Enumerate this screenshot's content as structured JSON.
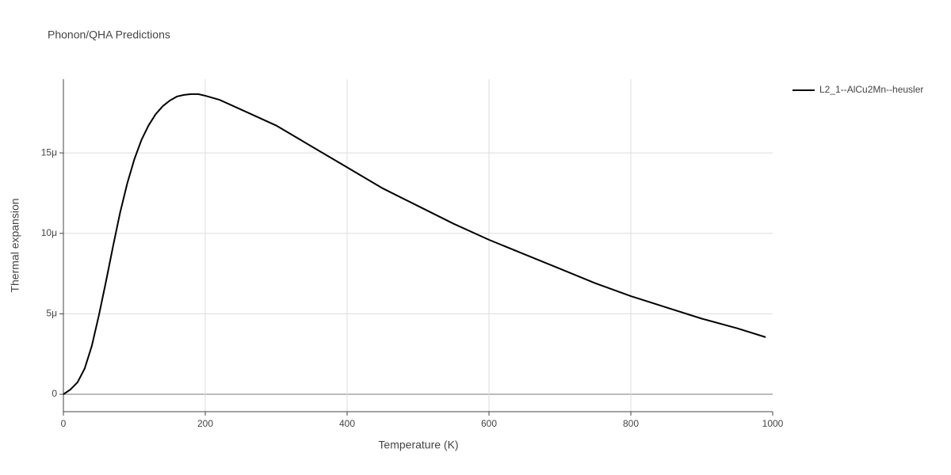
{
  "chart_data": {
    "type": "line",
    "title": "Phonon/QHA Predictions",
    "x_label": "Temperature (K)",
    "y_label": "Thermal expansion",
    "xlim": [
      0,
      1000
    ],
    "xticks": [
      0,
      200,
      400,
      600,
      800,
      1000
    ],
    "ylim": [
      -1.08e-06,
      1.958e-05
    ],
    "yticks": [
      0,
      {
        "value": 5e-06,
        "label": "5μ"
      },
      {
        "value": 1e-05,
        "label": "10μ"
      },
      {
        "value": 1.5e-05,
        "label": "15μ"
      }
    ],
    "grid": true,
    "legend": "top-right",
    "x": [
      0,
      10,
      20,
      30,
      40,
      50,
      60,
      70,
      80,
      90,
      100,
      110,
      120,
      130,
      140,
      150,
      160,
      170,
      180,
      190,
      200,
      220,
      250,
      300,
      350,
      400,
      450,
      500,
      550,
      600,
      650,
      700,
      750,
      800,
      850,
      900,
      950,
      990
    ],
    "series": [
      {
        "name": "L2_1--AlCu2Mn--heusler",
        "color": "#000000",
        "values": [
          0,
          3e-07,
          7.5e-07,
          1.6e-06,
          3e-06,
          4.9e-06,
          7e-06,
          9.2e-06,
          1.13e-05,
          1.31e-05,
          1.46e-05,
          1.58e-05,
          1.67e-05,
          1.74e-05,
          1.79e-05,
          1.825e-05,
          1.85e-05,
          1.86e-05,
          1.865e-05,
          1.865e-05,
          1.855e-05,
          1.83e-05,
          1.77e-05,
          1.67e-05,
          1.54e-05,
          1.41e-05,
          1.28e-05,
          1.17e-05,
          1.06e-05,
          9.6e-06,
          8.7e-06,
          7.8e-06,
          6.9e-06,
          6.1e-06,
          5.4e-06,
          4.7e-06,
          4.1e-06,
          3.55e-06
        ]
      }
    ]
  }
}
